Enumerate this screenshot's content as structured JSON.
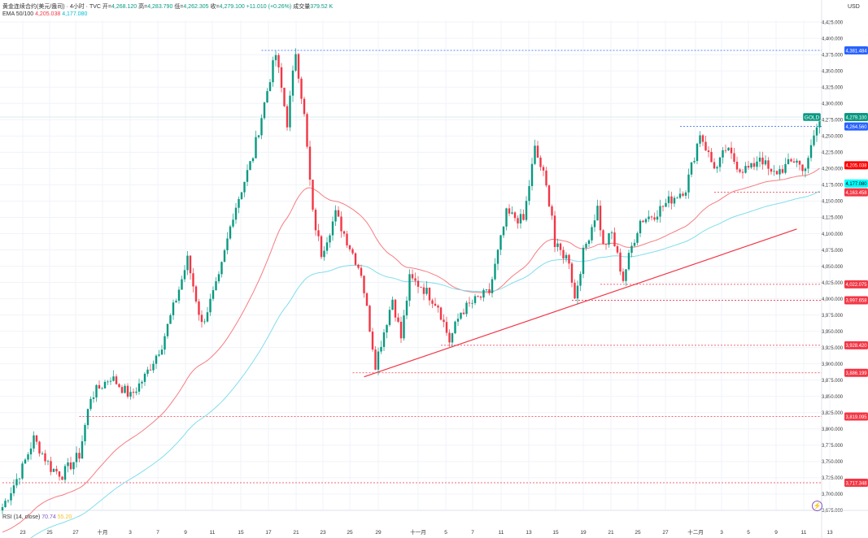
{
  "header": {
    "symbol_title": "黄金连续合约(美元/盎司) · 4小时 · TVC",
    "open_label": "开=",
    "open": "4,268.120",
    "high_label": "高=",
    "high": "4,283.790",
    "low_label": "低=",
    "low": "4,262.305",
    "close_label": "收=",
    "close": "4,279.100",
    "change": "+11.010 (+0.26%)",
    "volume_label": "成交量",
    "volume": "379.52 K"
  },
  "ema_legend": {
    "label": "EMA 50/100",
    "ema50": "4,205.038",
    "ema100": "4,177.080"
  },
  "rsi_legend": {
    "label": "RSI (14, close)",
    "v1": "70.74",
    "v2": "55.20"
  },
  "currency": "USD",
  "colors": {
    "up": "#089981",
    "down": "#f23645",
    "ema50": "#f77c80",
    "ema100": "#80deea",
    "level": "#f23645",
    "resistance": "#2962ff",
    "trend": "#f23645"
  },
  "chart_data": {
    "type": "candlestick",
    "interval": "4小时",
    "ylim": [
      3665,
      4435
    ],
    "y_ticks": [
      "4,425.000",
      "4,400.000",
      "4,375.000",
      "4,350.000",
      "4,325.000",
      "4,300.000",
      "4,275.000",
      "4,250.000",
      "4,225.000",
      "4,200.000",
      "4,175.000",
      "4,150.000",
      "4,125.000",
      "4,100.000",
      "4,075.000",
      "4,050.000",
      "4,025.000",
      "4,000.000",
      "3,975.000",
      "3,950.000",
      "3,925.000",
      "3,900.000",
      "3,875.000",
      "3,850.000",
      "3,825.000",
      "3,800.000",
      "3,775.000",
      "3,750.000",
      "3,725.000",
      "3,700.000",
      "3,675.000"
    ],
    "x_ticks": [
      "23",
      "25",
      "27",
      "十月",
      "3",
      "7",
      "9",
      "11",
      "15",
      "17",
      "21",
      "23",
      "25",
      "29",
      "十一月",
      "5",
      "7",
      "11",
      "13",
      "15",
      "19",
      "21",
      "25",
      "27",
      "十二月",
      "3",
      "5",
      "9",
      "11",
      "13"
    ],
    "price_path": [
      [
        0,
        3680
      ],
      [
        7,
        3740
      ],
      [
        11,
        3785
      ],
      [
        17,
        3740
      ],
      [
        21,
        3730
      ],
      [
        27,
        3760
      ],
      [
        31,
        3850
      ],
      [
        38,
        3880
      ],
      [
        45,
        3850
      ],
      [
        50,
        3880
      ],
      [
        56,
        3930
      ],
      [
        61,
        4000
      ],
      [
        65,
        4060
      ],
      [
        70,
        3960
      ],
      [
        76,
        4030
      ],
      [
        81,
        4130
      ],
      [
        88,
        4220
      ],
      [
        94,
        4340
      ],
      [
        96,
        4375
      ],
      [
        100,
        4270
      ],
      [
        103,
        4380
      ],
      [
        106,
        4280
      ],
      [
        109,
        4130
      ],
      [
        112,
        4070
      ],
      [
        117,
        4130
      ],
      [
        121,
        4090
      ],
      [
        126,
        4040
      ],
      [
        131,
        3900
      ],
      [
        134,
        3950
      ],
      [
        137,
        4000
      ],
      [
        140,
        3940
      ],
      [
        143,
        4030
      ],
      [
        147,
        4020
      ],
      [
        153,
        3990
      ],
      [
        157,
        3935
      ],
      [
        161,
        3980
      ],
      [
        167,
        4000
      ],
      [
        171,
        4010
      ],
      [
        174,
        4070
      ],
      [
        177,
        4130
      ],
      [
        183,
        4120
      ],
      [
        187,
        4230
      ],
      [
        190,
        4190
      ],
      [
        193,
        4130
      ],
      [
        194,
        4080
      ],
      [
        199,
        4060
      ],
      [
        201,
        4000
      ],
      [
        204,
        4070
      ],
      [
        209,
        4140
      ],
      [
        211,
        4080
      ],
      [
        214,
        4100
      ],
      [
        218,
        4030
      ],
      [
        221,
        4080
      ],
      [
        224,
        4120
      ],
      [
        229,
        4130
      ],
      [
        234,
        4150
      ],
      [
        240,
        4170
      ],
      [
        243,
        4220
      ],
      [
        245,
        4255
      ],
      [
        249,
        4210
      ],
      [
        251,
        4200
      ],
      [
        254,
        4230
      ],
      [
        259,
        4200
      ],
      [
        263,
        4200
      ],
      [
        266,
        4220
      ],
      [
        270,
        4190
      ],
      [
        274,
        4200
      ],
      [
        279,
        4215
      ],
      [
        281,
        4195
      ],
      [
        284,
        4230
      ],
      [
        287,
        4279.1
      ]
    ],
    "ema_periods": [
      50,
      100
    ],
    "levels": [
      {
        "price": 4381.484,
        "label": "4,381.484",
        "kind": "resistance",
        "from_candle": 91
      },
      {
        "price": 4264.56,
        "label": "4,264.560",
        "kind": "resistance",
        "from_candle": 238
      },
      {
        "price": 4163.458,
        "label": "4,163.458",
        "kind": "level",
        "from_candle": 250
      },
      {
        "price": 4022.075,
        "label": "4,022.075",
        "kind": "level",
        "from_candle": 210
      },
      {
        "price": 3997.658,
        "label": "3,997.658",
        "kind": "level",
        "from_candle": 200
      },
      {
        "price": 3928.42,
        "label": "3,928.420",
        "kind": "level",
        "from_candle": 154
      },
      {
        "price": 3886.199,
        "label": "3,886.199",
        "kind": "level",
        "from_candle": 123
      },
      {
        "price": 3819.095,
        "label": "3,819.095",
        "kind": "level",
        "from_candle": 27
      },
      {
        "price": 3717.348,
        "label": "3,717.348",
        "kind": "level",
        "from_candle": 0
      }
    ],
    "trendline": [
      [
        127,
        3880
      ],
      [
        279,
        4107
      ]
    ],
    "last_price": {
      "symbol": "GOLD",
      "label": "4,279.100"
    },
    "ema_labels": [
      "4,205.038",
      "4,177.080"
    ]
  }
}
